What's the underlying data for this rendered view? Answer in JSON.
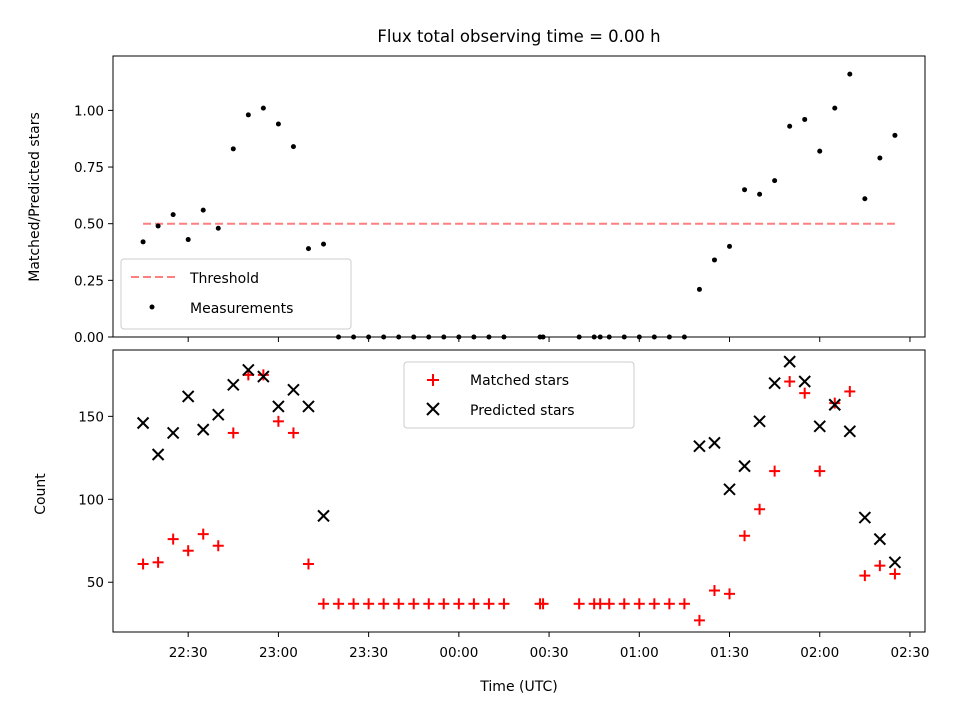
{
  "chart_data": [
    {
      "type": "scatter",
      "title": "Flux total observing time = 0.00 h",
      "ylabel": "Matched/Predicted stars",
      "xlabel": "",
      "ylim": [
        0,
        1.24
      ],
      "yticks": [
        "0.00",
        "0.25",
        "0.50",
        "0.75",
        "1.00"
      ],
      "yticks_values": [
        0,
        0.25,
        0.5,
        0.75,
        1.0
      ],
      "x_time_range": [
        "22:05",
        "02:35"
      ],
      "legend_position": "lower-left",
      "series": [
        {
          "name": "Threshold",
          "style": "dashed-line",
          "color": "#ff7f7f",
          "x": [
            "22:15",
            "02:25"
          ],
          "y": [
            0.5,
            0.5
          ]
        },
        {
          "name": "Measurements",
          "style": "dot",
          "color": "#000000",
          "x": [
            "22:15",
            "22:20",
            "22:25",
            "22:30",
            "22:35",
            "22:40",
            "22:45",
            "22:50",
            "22:55",
            "23:00",
            "23:05",
            "23:10",
            "23:15",
            "23:20",
            "23:25",
            "23:30",
            "23:35",
            "23:40",
            "23:45",
            "23:50",
            "23:55",
            "00:00",
            "00:05",
            "00:10",
            "00:15",
            "00:27",
            "00:28",
            "00:40",
            "00:45",
            "00:47",
            "00:50",
            "00:55",
            "01:00",
            "01:05",
            "01:10",
            "01:15",
            "01:20",
            "01:25",
            "01:30",
            "01:35",
            "01:40",
            "01:45",
            "01:50",
            "01:55",
            "02:00",
            "02:05",
            "02:10",
            "02:15",
            "02:20",
            "02:25"
          ],
          "y": [
            0.42,
            0.49,
            0.54,
            0.43,
            0.56,
            0.48,
            0.83,
            0.98,
            1.01,
            0.94,
            0.84,
            0.39,
            0.41,
            0,
            0,
            0,
            0,
            0,
            0,
            0,
            0,
            0,
            0,
            0,
            0,
            0,
            0,
            0,
            0,
            0,
            0,
            0,
            0,
            0,
            0,
            0,
            0.21,
            0.34,
            0.4,
            0.65,
            0.63,
            0.69,
            0.93,
            0.96,
            0.82,
            1.01,
            1.16,
            0.61,
            0.79,
            0.89
          ]
        }
      ]
    },
    {
      "type": "scatter",
      "title": "",
      "ylabel": "Count",
      "xlabel": "Time (UTC)",
      "ylim": [
        20,
        190
      ],
      "yticks": [
        "50",
        "100",
        "150"
      ],
      "yticks_values": [
        50,
        100,
        150
      ],
      "xticks": [
        "22:30",
        "23:00",
        "23:30",
        "00:00",
        "00:30",
        "01:00",
        "01:30",
        "02:00",
        "02:30"
      ],
      "x_time_range": [
        "22:05",
        "02:35"
      ],
      "legend_position": "upper-center",
      "series": [
        {
          "name": "Matched stars",
          "style": "plus",
          "color": "#ff0000",
          "x": [
            "22:15",
            "22:20",
            "22:25",
            "22:30",
            "22:35",
            "22:40",
            "22:45",
            "22:50",
            "22:55",
            "23:00",
            "23:05",
            "23:10",
            "23:15",
            "23:20",
            "23:25",
            "23:30",
            "23:35",
            "23:40",
            "23:45",
            "23:50",
            "23:55",
            "00:00",
            "00:05",
            "00:10",
            "00:15",
            "00:27",
            "00:28",
            "00:40",
            "00:45",
            "00:47",
            "00:50",
            "00:55",
            "01:00",
            "01:05",
            "01:10",
            "01:15",
            "01:20",
            "01:25",
            "01:30",
            "01:35",
            "01:40",
            "01:45",
            "01:50",
            "01:55",
            "02:00",
            "02:05",
            "02:10",
            "02:15",
            "02:20",
            "02:25"
          ],
          "y": [
            61,
            62,
            76,
            69,
            79,
            72,
            140,
            175,
            175,
            147,
            140,
            61,
            37,
            37,
            37,
            37,
            37,
            37,
            37,
            37,
            37,
            37,
            37,
            37,
            37,
            37,
            37,
            37,
            37,
            37,
            37,
            37,
            37,
            37,
            37,
            37,
            27,
            45,
            43,
            78,
            94,
            117,
            171,
            164,
            117,
            158,
            165,
            54,
            60,
            55
          ]
        },
        {
          "name": "Predicted stars",
          "style": "x",
          "color": "#000000",
          "x": [
            "22:15",
            "22:20",
            "22:25",
            "22:30",
            "22:35",
            "22:40",
            "22:45",
            "22:50",
            "22:55",
            "23:00",
            "23:05",
            "23:10",
            "23:15",
            "01:20",
            "01:25",
            "01:30",
            "01:35",
            "01:40",
            "01:45",
            "01:50",
            "01:55",
            "02:00",
            "02:05",
            "02:10",
            "02:15",
            "02:20",
            "02:25"
          ],
          "y": [
            146,
            127,
            140,
            162,
            142,
            151,
            169,
            178,
            174,
            156,
            166,
            156,
            90,
            132,
            134,
            106,
            120,
            147,
            170,
            183,
            171,
            144,
            157,
            141,
            89,
            76,
            62
          ]
        }
      ]
    }
  ]
}
